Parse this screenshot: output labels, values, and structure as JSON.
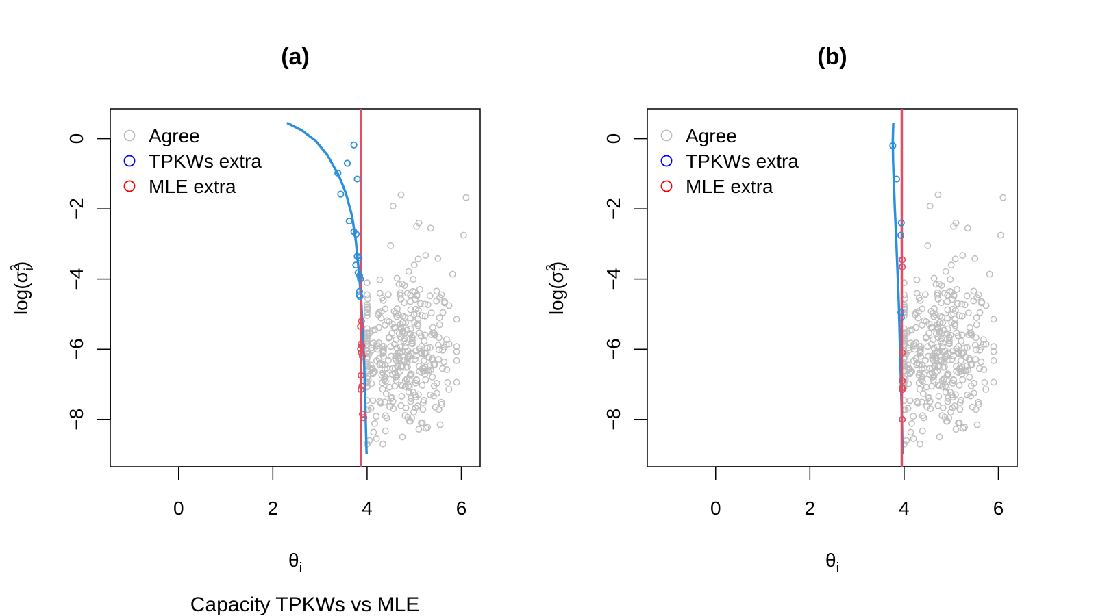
{
  "caption": "Capacity TPKWs vs MLE",
  "legend": [
    {
      "label": "Agree",
      "color": "#bebebe"
    },
    {
      "label": "TPKWs extra",
      "color": "#0000ff"
    },
    {
      "label": "MLE extra",
      "color": "#ff0000"
    }
  ],
  "colors": {
    "agree": "#bebebe",
    "tpkws_points": "#2b8fe0",
    "curve": "#2b8fe0",
    "mle_line": "#df4e63",
    "mle_points": "#df4e63"
  },
  "chart_data": [
    {
      "type": "scatter",
      "title": "(a)",
      "xlabel": "θ",
      "xlabel_sub": "i",
      "ylabel": "log(σ²_i)",
      "xlim": [
        -1.45,
        6.4
      ],
      "ylim": [
        -9.35,
        0.85
      ],
      "xticks": [
        0,
        2,
        4,
        6
      ],
      "yticks": [
        0,
        -2,
        -4,
        -6,
        -8
      ],
      "mle_threshold": 3.87,
      "tpkws_curve": [
        [
          2.3,
          0.45
        ],
        [
          2.6,
          0.25
        ],
        [
          2.9,
          -0.05
        ],
        [
          3.15,
          -0.45
        ],
        [
          3.4,
          -1.05
        ],
        [
          3.55,
          -1.55
        ],
        [
          3.68,
          -2.2
        ],
        [
          3.76,
          -2.9
        ],
        [
          3.82,
          -3.7
        ],
        [
          3.87,
          -4.5
        ],
        [
          3.91,
          -5.5
        ],
        [
          3.94,
          -6.5
        ],
        [
          3.96,
          -7.5
        ],
        [
          3.98,
          -8.5
        ],
        [
          3.99,
          -9.0
        ]
      ],
      "tpkws_extra": [
        [
          3.72,
          -0.18
        ],
        [
          3.58,
          -0.7
        ],
        [
          3.38,
          -0.98
        ],
        [
          3.79,
          -1.15
        ],
        [
          3.44,
          -1.58
        ],
        [
          3.62,
          -2.35
        ],
        [
          3.72,
          -2.65
        ],
        [
          3.77,
          -2.72
        ],
        [
          3.79,
          -3.35
        ],
        [
          3.83,
          -3.4
        ],
        [
          3.76,
          -3.6
        ],
        [
          3.81,
          -3.82
        ],
        [
          3.84,
          -3.9
        ],
        [
          3.86,
          -4.0
        ],
        [
          3.84,
          -4.35
        ],
        [
          3.83,
          -4.45
        ],
        [
          3.85,
          -4.5
        ]
      ],
      "mle_extra": [
        [
          3.88,
          -5.2
        ],
        [
          3.86,
          -5.35
        ],
        [
          3.87,
          -5.85
        ],
        [
          3.89,
          -5.9
        ],
        [
          3.86,
          -6.0
        ],
        [
          3.88,
          -6.1
        ],
        [
          3.9,
          -6.2
        ],
        [
          3.87,
          -6.75
        ],
        [
          3.89,
          -7.05
        ],
        [
          3.87,
          -7.15
        ],
        [
          3.9,
          -7.85
        ],
        [
          3.93,
          -7.95
        ]
      ]
    },
    {
      "type": "scatter",
      "title": "(b)",
      "xlabel": "θ",
      "xlabel_sub": "i",
      "ylabel": "log(σ²_i)",
      "xlim": [
        -1.45,
        6.4
      ],
      "ylim": [
        -9.35,
        0.85
      ],
      "xticks": [
        0,
        2,
        4,
        6
      ],
      "yticks": [
        0,
        -2,
        -4,
        -6,
        -8
      ],
      "mle_threshold": 3.95,
      "tpkws_curve": [
        [
          3.77,
          0.45
        ],
        [
          3.76,
          0.0
        ],
        [
          3.765,
          -0.6
        ],
        [
          3.78,
          -1.2
        ],
        [
          3.8,
          -1.9
        ],
        [
          3.83,
          -2.8
        ],
        [
          3.86,
          -3.8
        ],
        [
          3.89,
          -4.8
        ],
        [
          3.91,
          -5.8
        ],
        [
          3.93,
          -6.8
        ],
        [
          3.95,
          -7.8
        ],
        [
          3.96,
          -8.6
        ],
        [
          3.97,
          -9.0
        ]
      ],
      "tpkws_extra": [
        [
          3.76,
          -0.2
        ],
        [
          3.84,
          -1.15
        ],
        [
          3.94,
          -2.4
        ],
        [
          3.93,
          -2.75
        ],
        [
          3.93,
          -4.95
        ],
        [
          3.94,
          -5.1
        ]
      ],
      "mle_extra": [
        [
          3.96,
          -3.45
        ],
        [
          3.96,
          -3.65
        ],
        [
          3.96,
          -6.1
        ],
        [
          3.96,
          -6.9
        ],
        [
          3.96,
          -7.1
        ],
        [
          3.96,
          -7.15
        ],
        [
          3.96,
          -8.0
        ]
      ]
    }
  ]
}
